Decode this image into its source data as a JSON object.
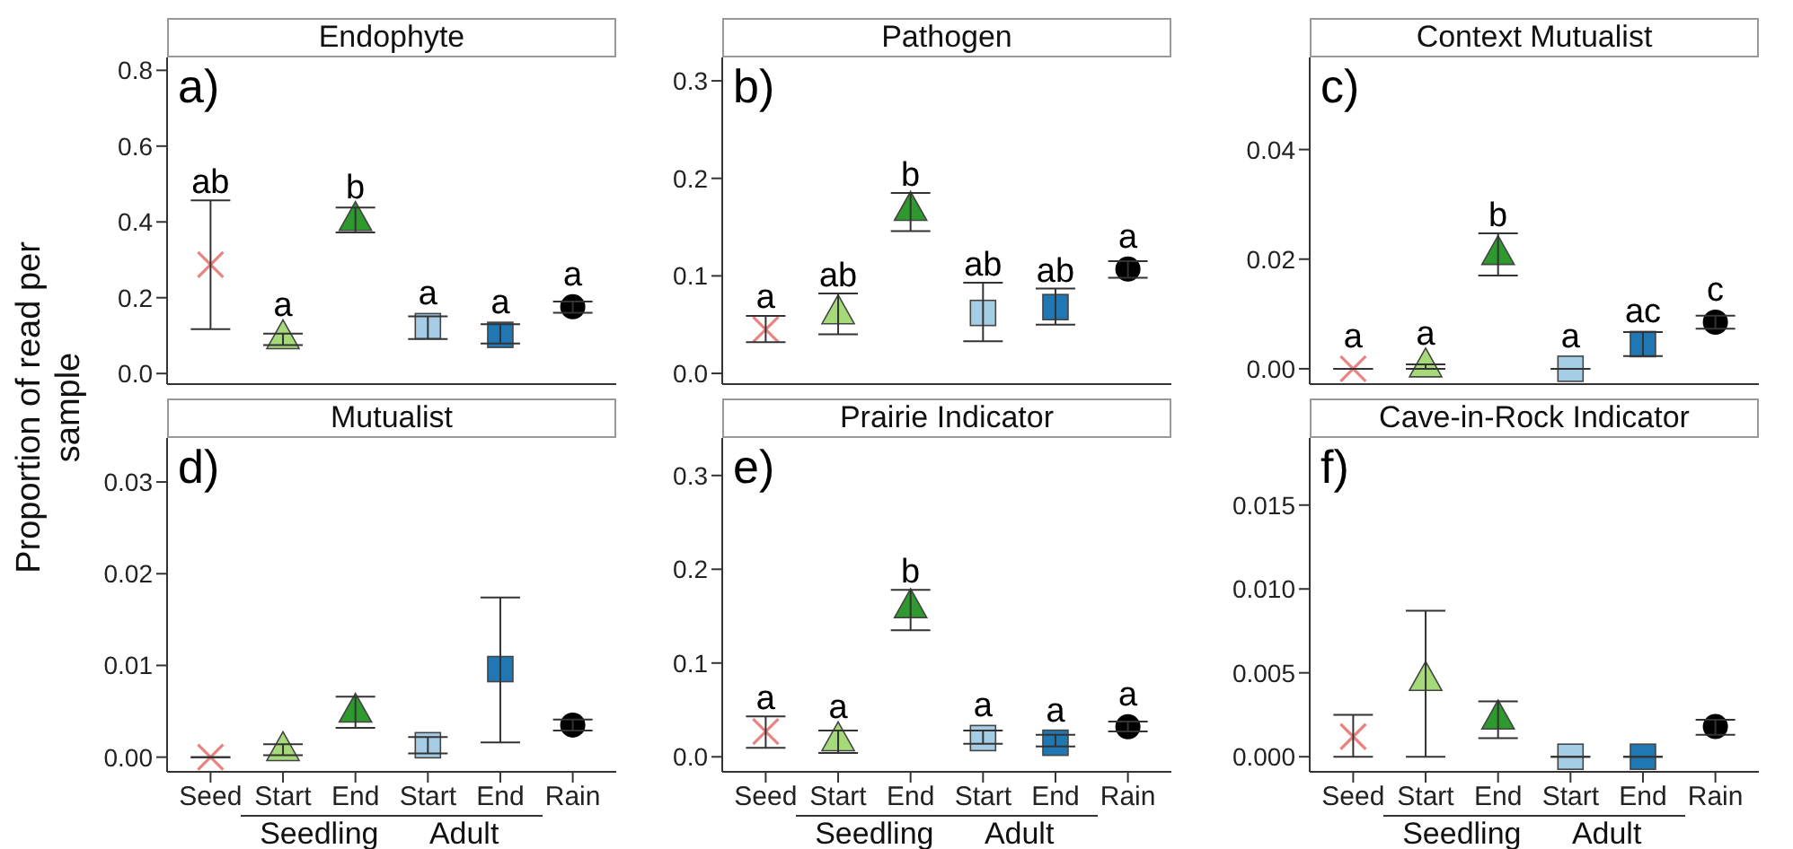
{
  "chart_data": [
    {
      "type": "scatter",
      "title": "Endophyte",
      "subtitle": "a)",
      "ylabel": "Proportion of read per sample",
      "categories": [
        null,
        null,
        null,
        null,
        null,
        null
      ],
      "tick_labels": "y",
      "ylim": [
        -0.028,
        0.834
      ],
      "yticks": [
        {
          "value": 0,
          "label": "0.0"
        },
        {
          "value": 0.2,
          "label": "0.2"
        },
        {
          "value": 0.4,
          "label": "0.4"
        },
        {
          "value": 0.6,
          "label": "0.6"
        },
        {
          "value": 0.8,
          "label": "0.8"
        }
      ],
      "series": [
        {
          "marker": "cross",
          "color": "#e8837f",
          "values": [
            0.287,
            null,
            null,
            null,
            null,
            null
          ],
          "errors": [
            [
              0.117,
              0.457
            ],
            null,
            null,
            null,
            null,
            null
          ],
          "value_labels": [
            "ab",
            null,
            null,
            null,
            null,
            null
          ]
        },
        {
          "marker": "triangle",
          "colors": [
            null,
            "#a6d97a",
            "#2e9a2e",
            null,
            null,
            null
          ],
          "values": [
            null,
            0.094,
            0.406,
            null,
            null,
            null
          ],
          "errors": [
            null,
            [
              0.075,
              0.105
            ],
            [
              0.372,
              0.438
            ],
            null,
            null,
            null
          ],
          "value_labels": [
            null,
            "a",
            "b",
            null,
            null,
            null
          ]
        },
        {
          "marker": "square",
          "colors": [
            null,
            null,
            null,
            "#a6cde6",
            "#1f78b4",
            null
          ],
          "values": [
            null,
            null,
            null,
            0.125,
            0.102,
            null
          ],
          "errors": [
            null,
            null,
            null,
            [
              0.091,
              0.151
            ],
            [
              0.079,
              0.13
            ],
            null
          ],
          "value_labels": [
            null,
            null,
            null,
            "a",
            "a",
            null
          ]
        },
        {
          "marker": "circle",
          "color": "#000000",
          "values": [
            null,
            null,
            null,
            null,
            null,
            0.176
          ],
          "errors": [
            null,
            null,
            null,
            null,
            null,
            [
              0.16,
              0.19
            ]
          ],
          "value_labels": [
            null,
            null,
            null,
            null,
            null,
            "a"
          ]
        }
      ]
    },
    {
      "type": "scatter",
      "title": "Pathogen",
      "subtitle": "b)",
      "categories": [
        null,
        null,
        null,
        null,
        null,
        null
      ],
      "tick_labels": "y",
      "ylim": [
        -0.011,
        0.324
      ],
      "yticks": [
        {
          "value": 0,
          "label": "0.0"
        },
        {
          "value": 0.1,
          "label": "0.1"
        },
        {
          "value": 0.2,
          "label": "0.2"
        },
        {
          "value": 0.3,
          "label": "0.3"
        }
      ],
      "series": [
        {
          "marker": "cross",
          "color": "#e8837f",
          "values": [
            0.045,
            null,
            null,
            null,
            null,
            null
          ],
          "errors": [
            [
              0.032,
              0.059
            ],
            null,
            null,
            null,
            null,
            null
          ],
          "value_labels": [
            "a",
            null,
            null,
            null,
            null,
            null
          ]
        },
        {
          "marker": "triangle",
          "colors": [
            null,
            "#a6d97a",
            "#2e9a2e",
            null,
            null,
            null
          ],
          "values": [
            null,
            0.062,
            0.168,
            null,
            null,
            null
          ],
          "errors": [
            null,
            [
              0.04,
              0.082
            ],
            [
              0.146,
              0.185
            ],
            null,
            null,
            null
          ],
          "value_labels": [
            null,
            "ab",
            "b",
            null,
            null,
            null
          ]
        },
        {
          "marker": "square",
          "colors": [
            null,
            null,
            null,
            "#a6cde6",
            "#1f78b4",
            null
          ],
          "values": [
            null,
            null,
            null,
            0.062,
            0.068,
            null
          ],
          "errors": [
            null,
            null,
            null,
            [
              0.033,
              0.093
            ],
            [
              0.05,
              0.087
            ],
            null
          ],
          "value_labels": [
            null,
            null,
            null,
            "ab",
            "ab",
            null
          ]
        },
        {
          "marker": "circle",
          "color": "#000000",
          "values": [
            null,
            null,
            null,
            null,
            null,
            0.107
          ],
          "errors": [
            null,
            null,
            null,
            null,
            null,
            [
              0.098,
              0.115
            ]
          ],
          "value_labels": [
            null,
            null,
            null,
            null,
            null,
            "a"
          ]
        }
      ]
    },
    {
      "type": "scatter",
      "title": "Context Mutualist",
      "subtitle": "c)",
      "categories": [
        null,
        null,
        null,
        null,
        null,
        null
      ],
      "tick_labels": "y",
      "ylim": [
        -0.0028,
        0.0568
      ],
      "yticks": [
        {
          "value": 0,
          "label": "0.00"
        },
        {
          "value": 0.02,
          "label": "0.02"
        },
        {
          "value": 0.04,
          "label": "0.04"
        }
      ],
      "series": [
        {
          "marker": "cross",
          "color": "#e8837f",
          "values": [
            0,
            null,
            null,
            null,
            null,
            null
          ],
          "errors": [
            [
              0,
              0
            ],
            null,
            null,
            null,
            null,
            null
          ],
          "value_labels": [
            "a",
            null,
            null,
            null,
            null,
            null
          ]
        },
        {
          "marker": "triangle",
          "colors": [
            null,
            "#a6d97a",
            "#2e9a2e",
            null,
            null,
            null
          ],
          "values": [
            null,
            0.0005,
            0.021,
            null,
            null,
            null
          ],
          "errors": [
            null,
            [
              0,
              0.0008
            ],
            [
              0.017,
              0.0247
            ],
            null,
            null,
            null
          ],
          "value_labels": [
            null,
            "a",
            "b",
            null,
            null,
            null
          ]
        },
        {
          "marker": "square",
          "colors": [
            null,
            null,
            null,
            "#a6cde6",
            "#1f78b4",
            null
          ],
          "values": [
            null,
            null,
            null,
            0,
            0.0045,
            null
          ],
          "errors": [
            null,
            null,
            null,
            [
              0,
              0
            ],
            [
              0.0023,
              0.0067
            ],
            null
          ],
          "value_labels": [
            null,
            null,
            null,
            "a",
            "ac",
            null
          ]
        },
        {
          "marker": "circle",
          "color": "#000000",
          "values": [
            null,
            null,
            null,
            null,
            null,
            0.0085
          ],
          "errors": [
            null,
            null,
            null,
            null,
            null,
            [
              0.0073,
              0.0097
            ]
          ],
          "value_labels": [
            null,
            null,
            null,
            null,
            null,
            "c"
          ]
        }
      ]
    },
    {
      "type": "scatter",
      "title": "Mutualist",
      "subtitle": "d)",
      "categories": [
        "Seed",
        "Start",
        "End",
        "Start",
        "End",
        "Rain"
      ],
      "annotations": [
        "Seedling",
        "Adult"
      ],
      "ylim": [
        -0.0016,
        0.0348
      ],
      "yticks": [
        {
          "value": 0,
          "label": "0.00"
        },
        {
          "value": 0.01,
          "label": "0.01"
        },
        {
          "value": 0.02,
          "label": "0.02"
        },
        {
          "value": 0.03,
          "label": "0.03"
        }
      ],
      "series": [
        {
          "marker": "cross",
          "color": "#e8837f",
          "values": [
            0,
            null,
            null,
            null,
            null,
            null
          ],
          "errors": [
            [
              0,
              0
            ],
            null,
            null,
            null,
            null,
            null
          ]
        },
        {
          "marker": "triangle",
          "colors": [
            null,
            "#a6d97a",
            "#2e9a2e",
            null,
            null,
            null
          ],
          "values": [
            null,
            0.0008,
            0.005,
            null,
            null,
            null
          ],
          "errors": [
            null,
            [
              0.0002,
              0.0014
            ],
            [
              0.0032,
              0.0066
            ],
            null,
            null,
            null
          ]
        },
        {
          "marker": "square",
          "colors": [
            null,
            null,
            null,
            "#a6cde6",
            "#1f78b4",
            null
          ],
          "values": [
            null,
            null,
            null,
            0.0013,
            0.0096,
            null
          ],
          "errors": [
            null,
            null,
            null,
            [
              0.0004,
              0.0022
            ],
            [
              0.0016,
              0.0174
            ],
            null
          ]
        },
        {
          "marker": "circle",
          "color": "#000000",
          "values": [
            null,
            null,
            null,
            null,
            null,
            0.0035
          ],
          "errors": [
            null,
            null,
            null,
            null,
            null,
            [
              0.0029,
              0.0041
            ]
          ]
        }
      ]
    },
    {
      "type": "scatter",
      "title": "Prairie Indicator",
      "subtitle": "e)",
      "categories": [
        "Seed",
        "Start",
        "End",
        "Start",
        "End",
        "Rain"
      ],
      "annotations": [
        "Seedling",
        "Adult"
      ],
      "ylim": [
        -0.016,
        0.34
      ],
      "yticks": [
        {
          "value": 0,
          "label": "0.0"
        },
        {
          "value": 0.1,
          "label": "0.1"
        },
        {
          "value": 0.2,
          "label": "0.2"
        },
        {
          "value": 0.3,
          "label": "0.3"
        }
      ],
      "series": [
        {
          "marker": "cross",
          "color": "#e8837f",
          "values": [
            0.027,
            null,
            null,
            null,
            null,
            null
          ],
          "errors": [
            [
              0.0095,
              0.043
            ],
            null,
            null,
            null,
            null,
            null
          ],
          "value_labels": [
            "a",
            null,
            null,
            null,
            null,
            null
          ]
        },
        {
          "marker": "triangle",
          "colors": [
            null,
            "#a6d97a",
            "#2e9a2e",
            null,
            null,
            null
          ],
          "values": [
            null,
            0.018,
            0.16,
            null,
            null,
            null
          ],
          "errors": [
            null,
            [
              0.004,
              0.028
            ],
            [
              0.135,
              0.178
            ],
            null,
            null,
            null
          ],
          "value_labels": [
            null,
            "a",
            "b",
            null,
            null,
            null
          ]
        },
        {
          "marker": "square",
          "colors": [
            null,
            null,
            null,
            "#a6cde6",
            "#1f78b4",
            null
          ],
          "values": [
            null,
            null,
            null,
            0.02,
            0.015,
            null
          ],
          "errors": [
            null,
            null,
            null,
            [
              0.014,
              0.028
            ],
            [
              0.011,
              0.0235
            ],
            null
          ],
          "value_labels": [
            null,
            null,
            null,
            "a",
            "a",
            null
          ]
        },
        {
          "marker": "circle",
          "color": "#000000",
          "values": [
            null,
            null,
            null,
            null,
            null,
            0.032
          ],
          "errors": [
            null,
            null,
            null,
            null,
            null,
            [
              0.027,
              0.0375
            ]
          ],
          "value_labels": [
            null,
            null,
            null,
            null,
            null,
            "a"
          ]
        }
      ]
    },
    {
      "type": "scatter",
      "title": "Cave-in-Rock Indicator",
      "subtitle": "f)",
      "categories": [
        "Seed",
        "Start",
        "End",
        "Start",
        "End",
        "Rain"
      ],
      "annotations": [
        "Seedling",
        "Adult"
      ],
      "ylim": [
        -0.0009,
        0.019
      ],
      "yticks": [
        {
          "value": 0,
          "label": "0.000"
        },
        {
          "value": 0.005,
          "label": "0.005"
        },
        {
          "value": 0.01,
          "label": "0.010"
        },
        {
          "value": 0.015,
          "label": "0.015"
        }
      ],
      "series": [
        {
          "marker": "cross",
          "color": "#e8837f",
          "values": [
            0.0012,
            null,
            null,
            null,
            null,
            null
          ],
          "errors": [
            [
              0,
              0.0025
            ],
            null,
            null,
            null,
            null,
            null
          ]
        },
        {
          "marker": "triangle",
          "colors": [
            null,
            "#a6d97a",
            "#2e9a2e",
            null,
            null,
            null
          ],
          "values": [
            null,
            0.0046,
            0.0023,
            null,
            null,
            null
          ],
          "errors": [
            null,
            [
              0,
              0.0087
            ],
            [
              0.0011,
              0.0033
            ],
            null,
            null,
            null
          ]
        },
        {
          "marker": "square",
          "colors": [
            null,
            null,
            null,
            "#a6cde6",
            "#1f78b4",
            null
          ],
          "values": [
            null,
            null,
            null,
            0,
            0,
            null
          ],
          "errors": [
            null,
            null,
            null,
            [
              0,
              0
            ],
            [
              0,
              0
            ],
            null
          ]
        },
        {
          "marker": "circle",
          "color": "#000000",
          "values": [
            null,
            null,
            null,
            null,
            null,
            0.0018
          ],
          "errors": [
            null,
            null,
            null,
            null,
            null,
            [
              0.0013,
              0.0022
            ]
          ]
        }
      ]
    }
  ]
}
